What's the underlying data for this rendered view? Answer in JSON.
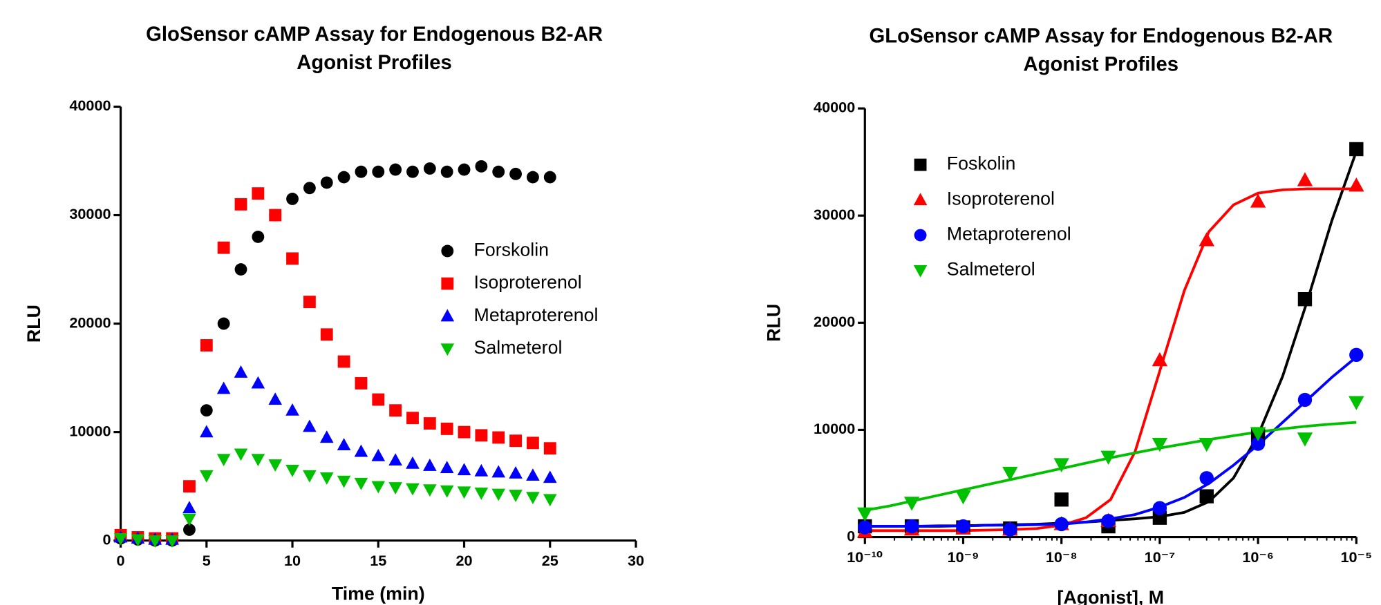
{
  "chart_data": [
    {
      "type": "scatter",
      "title": [
        "GloSensor cAMP Assay for Endogenous B2-AR",
        "Agonist Profiles"
      ],
      "x_label": "Time (min)",
      "y_label": "RLU",
      "xlim": [
        0,
        30
      ],
      "xticks": [
        0,
        5,
        10,
        15,
        20,
        25,
        30
      ],
      "ylim": [
        0,
        40000
      ],
      "yticks": [
        0,
        10000,
        20000,
        30000,
        40000
      ],
      "legend_loc": "right",
      "x": [
        0,
        1,
        2,
        3,
        4,
        5,
        6,
        7,
        8,
        9,
        10,
        11,
        12,
        13,
        14,
        15,
        16,
        17,
        18,
        19,
        20,
        21,
        22,
        23,
        24,
        25
      ],
      "series": [
        {
          "name": "Forskolin",
          "color": "#000000",
          "marker": "circle",
          "values": [
            200,
            100,
            0,
            0,
            1000,
            12000,
            20000,
            25000,
            28000,
            30000,
            31500,
            32500,
            33000,
            33500,
            34000,
            34000,
            34200,
            34000,
            34300,
            34000,
            34200,
            34500,
            34000,
            33800,
            33500,
            33500
          ]
        },
        {
          "name": "Isoproterenol",
          "color": "#ff0000",
          "marker": "square",
          "values": [
            500,
            300,
            200,
            200,
            5000,
            18000,
            27000,
            31000,
            32000,
            30000,
            26000,
            22000,
            19000,
            16500,
            14500,
            13000,
            12000,
            11300,
            10800,
            10300,
            10000,
            9700,
            9500,
            9200,
            9000,
            8500
          ]
        },
        {
          "name": "Metaproterenol",
          "color": "#0000ff",
          "marker": "triangle-up",
          "values": [
            300,
            200,
            100,
            100,
            3000,
            10000,
            14000,
            15500,
            14500,
            13000,
            12000,
            10500,
            9500,
            8800,
            8200,
            7800,
            7400,
            7100,
            6900,
            6700,
            6500,
            6400,
            6300,
            6200,
            6000,
            5800
          ]
        },
        {
          "name": "Salmeterol",
          "color": "#00c000",
          "marker": "triangle-down",
          "values": [
            200,
            100,
            0,
            0,
            2000,
            6000,
            7500,
            8000,
            7500,
            7000,
            6500,
            6000,
            5800,
            5500,
            5300,
            5000,
            4900,
            4800,
            4700,
            4600,
            4500,
            4400,
            4300,
            4200,
            4000,
            3800
          ]
        }
      ]
    },
    {
      "type": "scatter",
      "title": [
        "GLoSensor cAMP Assay for Endogenous B2-AR",
        "Agonist Profiles"
      ],
      "x_label": "[Agonist], M",
      "y_label": "RLU",
      "xscale": "log",
      "xlim": [
        1e-10,
        1e-05
      ],
      "xticks": [
        {
          "value": 1e-10,
          "label": "10⁻¹⁰"
        },
        {
          "value": 1e-09,
          "label": "10⁻⁹"
        },
        {
          "value": 1e-08,
          "label": "10⁻⁸"
        },
        {
          "value": 1e-07,
          "label": "10⁻⁷"
        },
        {
          "value": 1e-06,
          "label": "10⁻⁶"
        },
        {
          "value": 1e-05,
          "label": "10⁻⁵"
        }
      ],
      "ylim": [
        0,
        40000
      ],
      "yticks": [
        0,
        10000,
        20000,
        30000,
        40000
      ],
      "legend_loc": "upper left",
      "x": [
        1e-10,
        3e-10,
        1e-09,
        3e-09,
        1e-08,
        3e-08,
        1e-07,
        3e-07,
        1e-06,
        3e-06,
        1e-05
      ],
      "curve_x": [
        1e-10,
        1.778e-10,
        3.162e-10,
        5.623e-10,
        1e-09,
        1.778e-09,
        3.162e-09,
        5.623e-09,
        1e-08,
        1.778e-08,
        3.162e-08,
        5.623e-08,
        1e-07,
        1.778e-07,
        3.162e-07,
        5.623e-07,
        1e-06,
        1.778e-06,
        3.162e-06,
        5.623e-06,
        1e-05
      ],
      "series": [
        {
          "name": "Foskolin",
          "color": "#000000",
          "marker": "square",
          "values": [
            1000,
            1000,
            900,
            800,
            3500,
            1000,
            1800,
            3800,
            9500,
            22200,
            36200
          ],
          "curve": [
            1000,
            1000,
            1000,
            1000,
            1050,
            1100,
            1150,
            1200,
            1300,
            1400,
            1550,
            1700,
            1900,
            2300,
            3300,
            5500,
            9500,
            15000,
            22000,
            29500,
            36000
          ]
        },
        {
          "name": "Isoproterenol",
          "color": "#ff0000",
          "marker": "triangle-up",
          "values": [
            500,
            700,
            800,
            700,
            1200,
            1500,
            16500,
            27700,
            31300,
            33300,
            32800
          ],
          "curve": [
            600,
            600,
            600,
            600,
            600,
            650,
            700,
            800,
            1100,
            1800,
            3500,
            8000,
            15500,
            23000,
            28500,
            31000,
            32100,
            32400,
            32500,
            32500,
            32500
          ]
        },
        {
          "name": "Metaproterenol",
          "color": "#0000ff",
          "marker": "circle",
          "values": [
            900,
            1000,
            1000,
            700,
            1200,
            1500,
            2700,
            5500,
            8700,
            12800,
            17000
          ],
          "curve": [
            1000,
            1000,
            1000,
            1050,
            1050,
            1100,
            1100,
            1150,
            1200,
            1400,
            1700,
            2100,
            2800,
            3700,
            5000,
            6700,
            8600,
            10700,
            12800,
            14900,
            16800
          ]
        },
        {
          "name": "Salmeterol",
          "color": "#00c000",
          "marker": "triangle-down",
          "values": [
            2200,
            3200,
            3800,
            6000,
            6800,
            7500,
            8700,
            8700,
            9700,
            9200,
            12600
          ],
          "curve": [
            2500,
            2900,
            3400,
            3900,
            4400,
            4900,
            5400,
            5900,
            6400,
            6900,
            7400,
            7850,
            8300,
            8700,
            9100,
            9450,
            9800,
            10100,
            10350,
            10550,
            10700
          ]
        }
      ]
    }
  ]
}
